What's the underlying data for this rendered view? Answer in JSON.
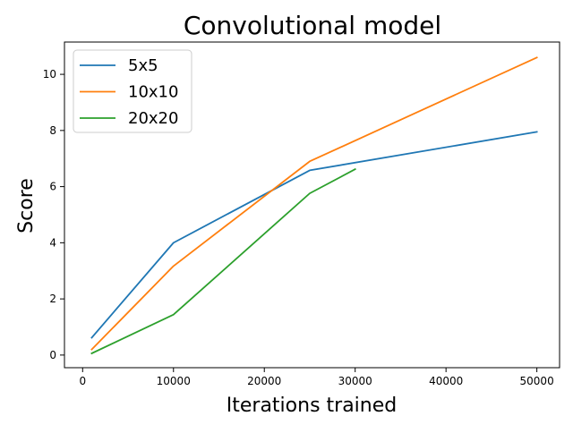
{
  "chart_data": {
    "type": "line",
    "title": "Convolutional model",
    "xlabel": "Iterations trained",
    "ylabel": "Score",
    "xlim": [
      -2000,
      52500
    ],
    "ylim": [
      -0.45,
      11.15
    ],
    "x_ticks": [
      {
        "value": 0,
        "label": "0"
      },
      {
        "value": 10000,
        "label": "10000"
      },
      {
        "value": 20000,
        "label": "20000"
      },
      {
        "value": 30000,
        "label": "30000"
      },
      {
        "value": 40000,
        "label": "40000"
      },
      {
        "value": 50000,
        "label": "50000"
      }
    ],
    "y_ticks": [
      {
        "value": 0,
        "label": "0"
      },
      {
        "value": 2,
        "label": "2"
      },
      {
        "value": 4,
        "label": "4"
      },
      {
        "value": 6,
        "label": "6"
      },
      {
        "value": 8,
        "label": "8"
      },
      {
        "value": 10,
        "label": "10"
      }
    ],
    "grid": false,
    "legend_position": "top-left",
    "series": [
      {
        "name": "5x5",
        "color": "#1f77b4",
        "points": [
          {
            "x": 1000,
            "y": 0.62
          },
          {
            "x": 10000,
            "y": 4.0
          },
          {
            "x": 25000,
            "y": 6.58
          },
          {
            "x": 50000,
            "y": 7.95
          }
        ]
      },
      {
        "name": "10x10",
        "color": "#ff7f0e",
        "points": [
          {
            "x": 1000,
            "y": 0.2
          },
          {
            "x": 10000,
            "y": 3.17
          },
          {
            "x": 25000,
            "y": 6.9
          },
          {
            "x": 50000,
            "y": 10.6
          }
        ]
      },
      {
        "name": "20x20",
        "color": "#2ca02c",
        "points": [
          {
            "x": 1000,
            "y": 0.06
          },
          {
            "x": 10000,
            "y": 1.44
          },
          {
            "x": 25000,
            "y": 5.76
          },
          {
            "x": 30000,
            "y": 6.62
          }
        ]
      }
    ]
  }
}
